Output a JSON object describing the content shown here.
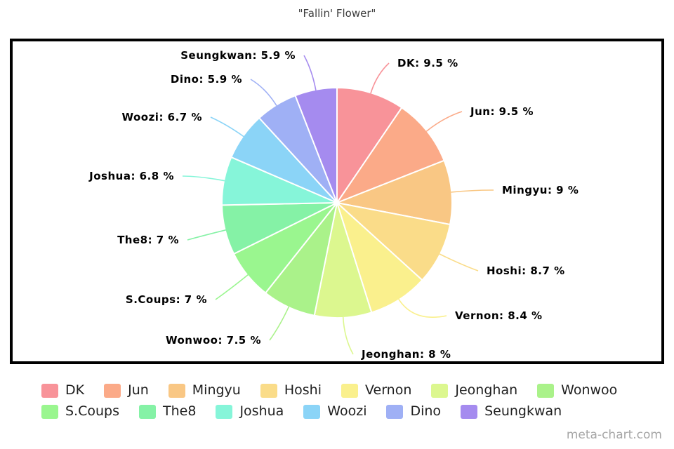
{
  "title": "\"Fallin' Flower\"",
  "watermark": "meta-chart.com",
  "chart_data": {
    "type": "pie",
    "title": "\"Fallin' Flower\"",
    "unit": "%",
    "direction": "clockwise",
    "start_angle_deg": 0,
    "legend_position": "bottom",
    "categories": [
      "DK",
      "Jun",
      "Mingyu",
      "Hoshi",
      "Vernon",
      "Jeonghan",
      "Wonwoo",
      "S.Coups",
      "The8",
      "Joshua",
      "Woozi",
      "Dino",
      "Seungkwan"
    ],
    "values": [
      9.5,
      9.5,
      9,
      8.7,
      8.4,
      8,
      7.5,
      7,
      7,
      6.8,
      6.7,
      5.9,
      5.9
    ],
    "colors": [
      "#f89399",
      "#fbaa88",
      "#f9c784",
      "#fadc89",
      "#faf08d",
      "#dcf78f",
      "#aaf28a",
      "#9af68f",
      "#85f2a6",
      "#86f5d9",
      "#8bd4f7",
      "#9fb0f5",
      "#a58bef"
    ],
    "slice_label_format": "{name}: {value} %"
  }
}
